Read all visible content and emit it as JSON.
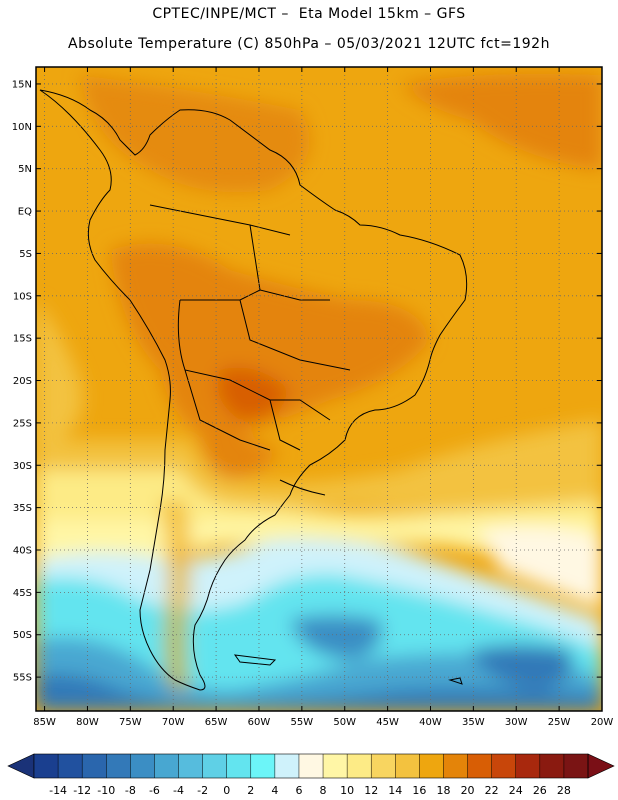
{
  "header": {
    "line1": "CPTEC/INPE/MCT –  Eta Model 15km – GFS",
    "line2": "Absolute Temperature (C) 850hPa – 05/03/2021 12UTC fct=192h"
  },
  "map": {
    "lon_range": [
      -86,
      -20
    ],
    "lat_range": [
      -59,
      17
    ],
    "lat_ticks": [
      {
        "value": 15,
        "label": "15N"
      },
      {
        "value": 10,
        "label": "10N"
      },
      {
        "value": 5,
        "label": "5N"
      },
      {
        "value": 0,
        "label": "EQ"
      },
      {
        "value": -5,
        "label": "5S"
      },
      {
        "value": -10,
        "label": "10S"
      },
      {
        "value": -15,
        "label": "15S"
      },
      {
        "value": -20,
        "label": "20S"
      },
      {
        "value": -25,
        "label": "25S"
      },
      {
        "value": -30,
        "label": "30S"
      },
      {
        "value": -35,
        "label": "35S"
      },
      {
        "value": -40,
        "label": "40S"
      },
      {
        "value": -45,
        "label": "45S"
      },
      {
        "value": -50,
        "label": "50S"
      },
      {
        "value": -55,
        "label": "55S"
      }
    ],
    "lon_ticks": [
      {
        "value": -85,
        "label": "85W"
      },
      {
        "value": -80,
        "label": "80W"
      },
      {
        "value": -75,
        "label": "75W"
      },
      {
        "value": -70,
        "label": "70W"
      },
      {
        "value": -65,
        "label": "65W"
      },
      {
        "value": -60,
        "label": "60W"
      },
      {
        "value": -55,
        "label": "55W"
      },
      {
        "value": -50,
        "label": "50W"
      },
      {
        "value": -45,
        "label": "45W"
      },
      {
        "value": -40,
        "label": "40W"
      },
      {
        "value": -35,
        "label": "35W"
      },
      {
        "value": -30,
        "label": "30W"
      },
      {
        "value": -25,
        "label": "25W"
      },
      {
        "value": -20,
        "label": "20W"
      }
    ],
    "grid": true
  },
  "colorbar": {
    "labels": [
      "-14",
      "-12",
      "-10",
      "-8",
      "-6",
      "-4",
      "-2",
      "0",
      "2",
      "4",
      "6",
      "8",
      "10",
      "12",
      "14",
      "16",
      "18",
      "20",
      "22",
      "24",
      "26",
      "28"
    ],
    "colors": [
      "#1a3f8f",
      "#21519f",
      "#2a66ad",
      "#3379b8",
      "#3b8ec4",
      "#48a7d1",
      "#56bcdd",
      "#5fd0e6",
      "#63e4ef",
      "#6cf5f8",
      "#cff2fb",
      "#fff8e3",
      "#fff6a6",
      "#fdeb86",
      "#f8d560",
      "#f3c23f",
      "#eea60f",
      "#e48409",
      "#d85e05",
      "#c8460a",
      "#a8280d",
      "#8a1a10",
      "#7a1414"
    ],
    "left_arrow_color": "#1a3278",
    "right_arrow_color": "#7a0f16"
  }
}
